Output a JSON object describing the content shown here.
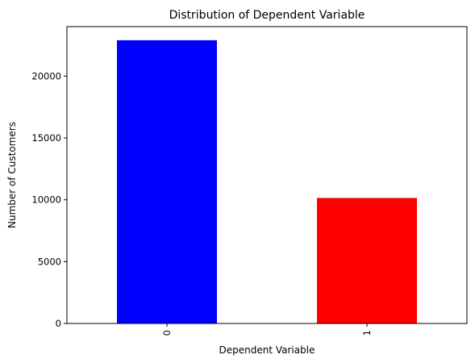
{
  "chart_data": {
    "type": "bar",
    "title": "Distribution of Dependent Variable",
    "xlabel": "Dependent Variable",
    "ylabel": "Number of Customers",
    "categories": [
      "0",
      "1"
    ],
    "values": [
      22900,
      10150
    ],
    "colors": [
      "#0000ff",
      "#ff0000"
    ],
    "ylim": [
      0,
      24000
    ],
    "yticks": [
      0,
      5000,
      10000,
      15000,
      20000
    ],
    "xtick_rotation": "vertical",
    "grid": false,
    "legend": "none"
  }
}
